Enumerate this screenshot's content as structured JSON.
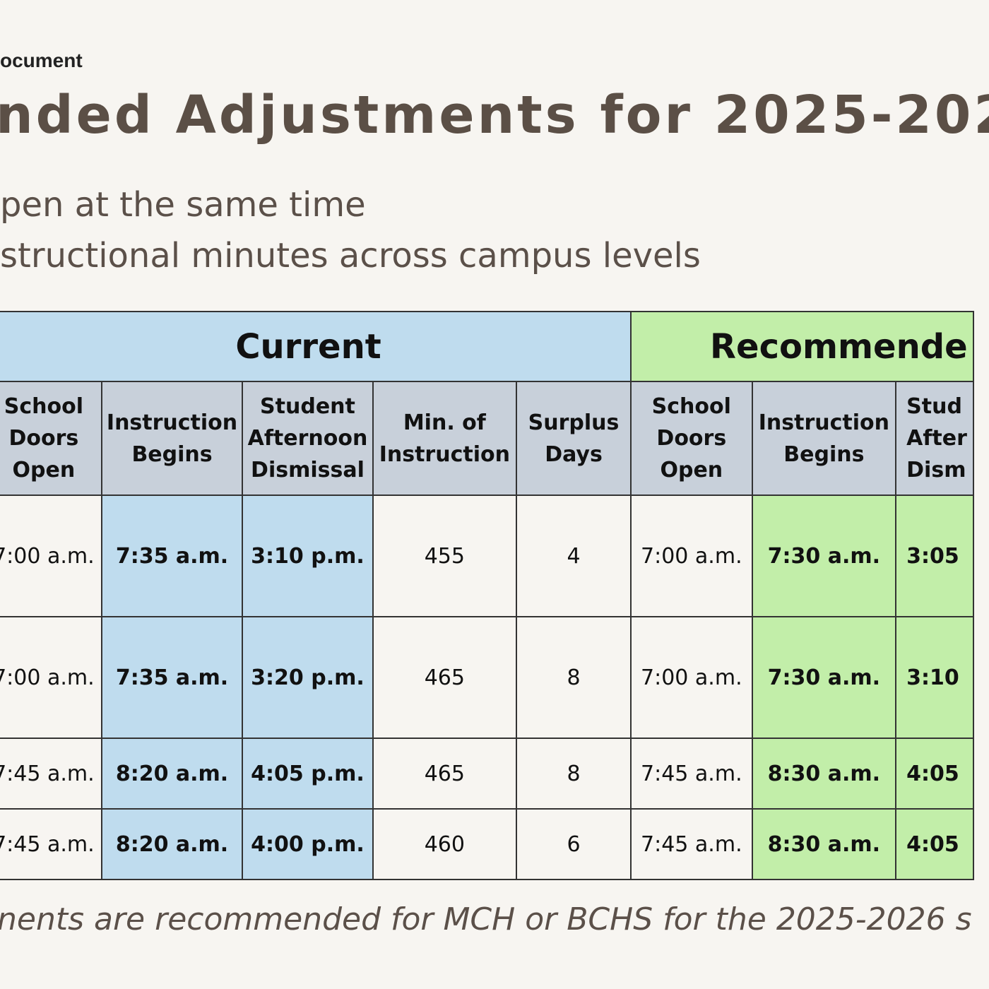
{
  "header": {
    "label": "ocument",
    "title": "nded Adjustments for 2025-202"
  },
  "bullets": [
    "pen at the same time",
    "structional minutes across campus levels"
  ],
  "table": {
    "groups": [
      "Current",
      "Recommende"
    ],
    "columns": [
      "School Doors Open",
      "Instruction Begins",
      "Student Afternoon Dismissal",
      "Min. of Instruction",
      "Surplus Days",
      "School Doors Open",
      "Instruction Begins",
      "Stud After Dism"
    ],
    "rows": [
      [
        "7:00 a.m.",
        "7:35 a.m.",
        "3:10 p.m.",
        "455",
        "4",
        "7:00 a.m.",
        "7:30 a.m.",
        "3:05"
      ],
      [
        "7:00 a.m.",
        "7:35 a.m.",
        "3:20 p.m.",
        "465",
        "8",
        "7:00 a.m.",
        "7:30 a.m.",
        "3:10"
      ],
      [
        "7:45 a.m.",
        "8:20 a.m.",
        "4:05 p.m.",
        "465",
        "8",
        "7:45 a.m.",
        "8:30 a.m.",
        "4:05"
      ],
      [
        "7:45 a.m.",
        "8:20 a.m.",
        "4:00 p.m.",
        "460",
        "6",
        "7:45 a.m.",
        "8:30 a.m.",
        "4:05"
      ]
    ]
  },
  "footnote": "nents are recommended for MCH or BCHS for the 2025-2026 s"
}
